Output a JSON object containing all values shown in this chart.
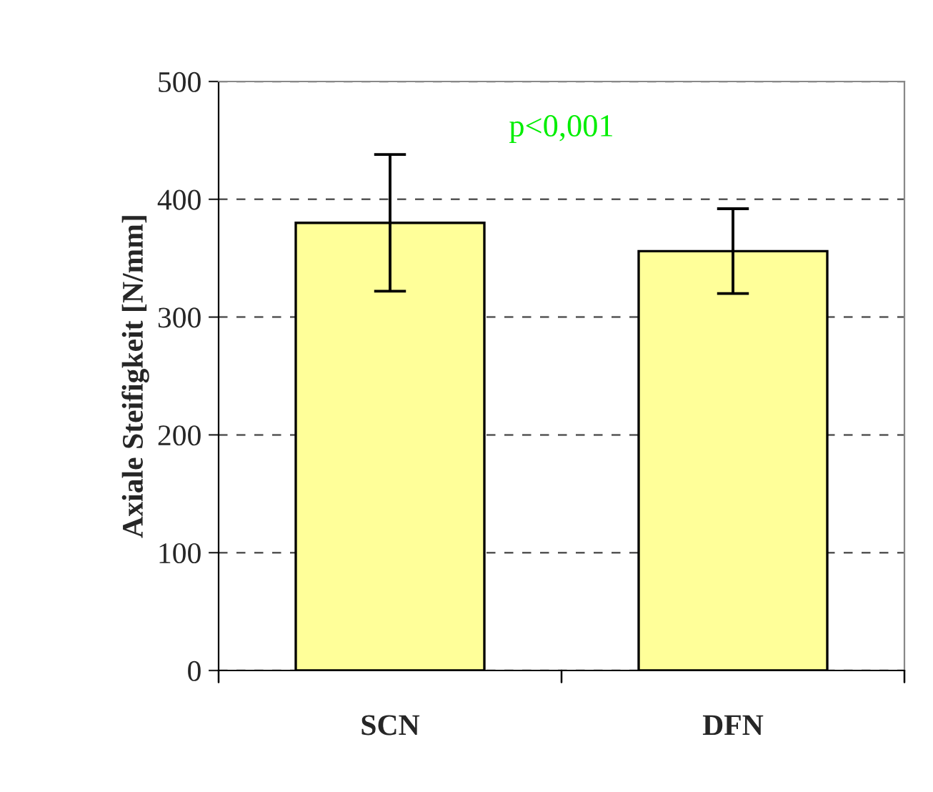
{
  "chart_data": {
    "type": "bar",
    "ylabel": "Axiale Steifigkeit [N/mm]",
    "categories": [
      "SCN",
      "DFN"
    ],
    "values": [
      380,
      356
    ],
    "errors": [
      [
        322,
        438
      ],
      [
        320,
        392
      ]
    ],
    "color": "#ffff99",
    "ylim": [
      0,
      500
    ],
    "yticks": [
      0,
      100,
      200,
      300,
      400,
      500
    ],
    "grid": "y",
    "annotations": [
      "p<0,001"
    ]
  }
}
